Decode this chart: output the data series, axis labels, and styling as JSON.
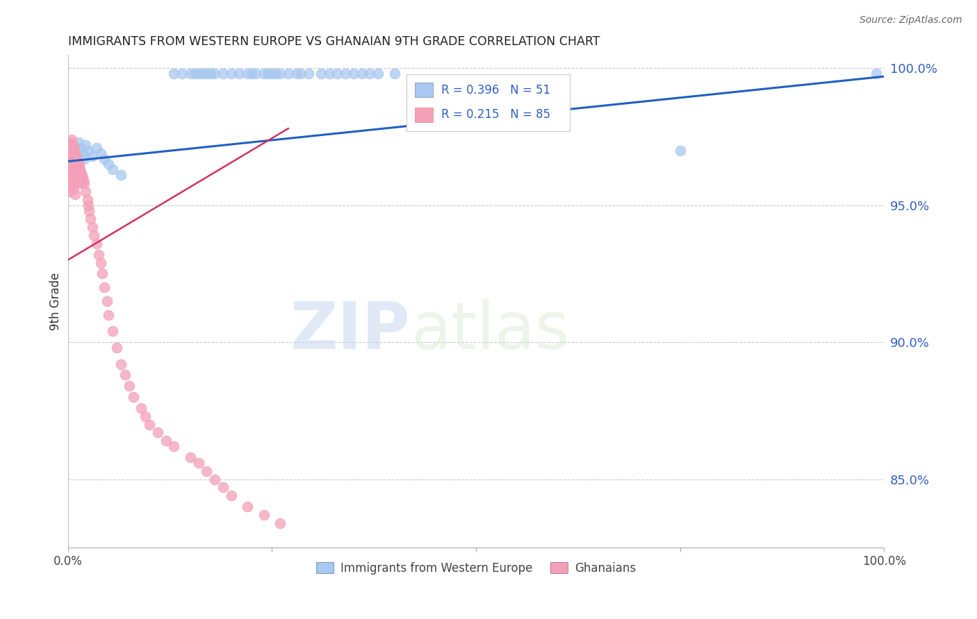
{
  "title": "IMMIGRANTS FROM WESTERN EUROPE VS GHANAIAN 9TH GRADE CORRELATION CHART",
  "source": "Source: ZipAtlas.com",
  "ylabel": "9th Grade",
  "ytick_values": [
    0.85,
    0.9,
    0.95,
    1.0
  ],
  "xlim": [
    0.0,
    1.0
  ],
  "ylim": [
    0.825,
    1.005
  ],
  "blue_R": 0.396,
  "blue_N": 51,
  "pink_R": 0.215,
  "pink_N": 85,
  "legend_labels": [
    "Immigrants from Western Europe",
    "Ghanaians"
  ],
  "blue_color": "#a8c8f0",
  "pink_color": "#f4a0b8",
  "blue_line_color": "#2060c0",
  "pink_line_color": "#d03060",
  "watermark_zip": "ZIP",
  "watermark_atlas": "atlas",
  "annotation_color": "#3060c0",
  "blue_line_x": [
    0.0,
    1.0
  ],
  "blue_line_y": [
    0.966,
    0.997
  ],
  "pink_line_x": [
    0.0,
    0.27
  ],
  "pink_line_y": [
    0.93,
    0.978
  ],
  "blue_x": [
    0.005,
    0.008,
    0.01,
    0.013,
    0.015,
    0.018,
    0.02,
    0.022,
    0.025,
    0.03,
    0.035,
    0.04,
    0.045,
    0.05,
    0.055,
    0.065,
    0.13,
    0.14,
    0.15,
    0.155,
    0.16,
    0.165,
    0.17,
    0.175,
    0.18,
    0.19,
    0.2,
    0.21,
    0.22,
    0.225,
    0.23,
    0.24,
    0.245,
    0.25,
    0.255,
    0.26,
    0.27,
    0.28,
    0.285,
    0.295,
    0.31,
    0.32,
    0.33,
    0.34,
    0.35,
    0.36,
    0.37,
    0.38,
    0.4,
    0.75,
    0.99
  ],
  "blue_y": [
    0.972,
    0.97,
    0.968,
    0.973,
    0.971,
    0.969,
    0.967,
    0.972,
    0.97,
    0.968,
    0.971,
    0.969,
    0.967,
    0.965,
    0.963,
    0.961,
    0.998,
    0.998,
    0.998,
    0.998,
    0.998,
    0.998,
    0.998,
    0.998,
    0.998,
    0.998,
    0.998,
    0.998,
    0.998,
    0.998,
    0.998,
    0.998,
    0.998,
    0.998,
    0.998,
    0.998,
    0.998,
    0.998,
    0.998,
    0.998,
    0.998,
    0.998,
    0.998,
    0.998,
    0.998,
    0.998,
    0.998,
    0.998,
    0.998,
    0.97,
    0.998
  ],
  "pink_x": [
    0.001,
    0.001,
    0.002,
    0.002,
    0.002,
    0.003,
    0.003,
    0.003,
    0.003,
    0.004,
    0.004,
    0.004,
    0.004,
    0.005,
    0.005,
    0.005,
    0.005,
    0.005,
    0.006,
    0.006,
    0.006,
    0.006,
    0.007,
    0.007,
    0.007,
    0.007,
    0.008,
    0.008,
    0.008,
    0.009,
    0.009,
    0.009,
    0.009,
    0.01,
    0.01,
    0.01,
    0.011,
    0.011,
    0.012,
    0.012,
    0.013,
    0.013,
    0.014,
    0.015,
    0.015,
    0.016,
    0.017,
    0.018,
    0.019,
    0.02,
    0.022,
    0.024,
    0.025,
    0.026,
    0.028,
    0.03,
    0.032,
    0.035,
    0.038,
    0.04,
    0.042,
    0.045,
    0.048,
    0.05,
    0.055,
    0.06,
    0.065,
    0.07,
    0.075,
    0.08,
    0.09,
    0.095,
    0.1,
    0.11,
    0.12,
    0.13,
    0.15,
    0.16,
    0.17,
    0.18,
    0.19,
    0.2,
    0.22,
    0.24,
    0.26
  ],
  "pink_y": [
    0.97,
    0.965,
    0.968,
    0.963,
    0.958,
    0.972,
    0.967,
    0.96,
    0.955,
    0.973,
    0.968,
    0.963,
    0.958,
    0.974,
    0.97,
    0.966,
    0.962,
    0.957,
    0.972,
    0.967,
    0.963,
    0.958,
    0.971,
    0.966,
    0.961,
    0.956,
    0.97,
    0.965,
    0.96,
    0.969,
    0.964,
    0.959,
    0.954,
    0.968,
    0.963,
    0.958,
    0.967,
    0.962,
    0.966,
    0.961,
    0.965,
    0.96,
    0.964,
    0.963,
    0.958,
    0.962,
    0.961,
    0.96,
    0.959,
    0.958,
    0.955,
    0.952,
    0.95,
    0.948,
    0.945,
    0.942,
    0.939,
    0.936,
    0.932,
    0.929,
    0.925,
    0.92,
    0.915,
    0.91,
    0.904,
    0.898,
    0.892,
    0.888,
    0.884,
    0.88,
    0.876,
    0.873,
    0.87,
    0.867,
    0.864,
    0.862,
    0.858,
    0.856,
    0.853,
    0.85,
    0.847,
    0.844,
    0.84,
    0.837,
    0.834
  ]
}
